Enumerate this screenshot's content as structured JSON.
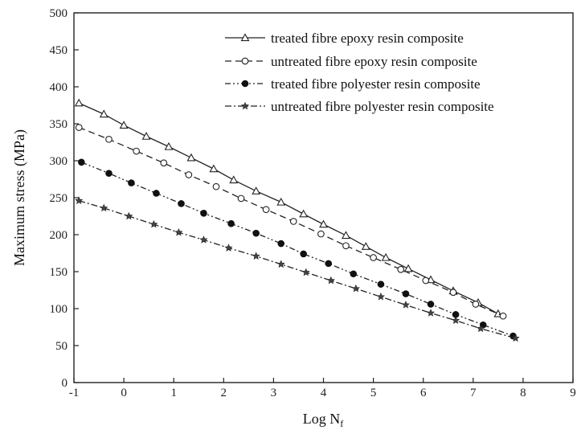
{
  "chart_data": {
    "type": "line",
    "xlabel": "Log N",
    "xlabel_sub": "f",
    "ylabel": "Maximum stress (MPa)",
    "xlim": [
      -1,
      9
    ],
    "ylim": [
      0,
      500
    ],
    "xticks": [
      -1,
      0,
      1,
      2,
      3,
      4,
      5,
      6,
      7,
      8,
      9
    ],
    "yticks": [
      0,
      50,
      100,
      150,
      200,
      250,
      300,
      350,
      400,
      450,
      500
    ],
    "grid": false,
    "legend_position": "top-right",
    "series": [
      {
        "name": "treated fibre epoxy resin composite",
        "line": "solid",
        "marker": "open-triangle",
        "x": [
          -0.9,
          -0.4,
          0.0,
          0.45,
          0.9,
          1.35,
          1.8,
          2.2,
          2.65,
          3.15,
          3.6,
          4.0,
          4.45,
          4.85,
          5.25,
          5.7,
          6.15,
          6.6,
          7.1,
          7.5
        ],
        "y": [
          378,
          363,
          348,
          333,
          319,
          304,
          289,
          274,
          259,
          244,
          228,
          214,
          199,
          184,
          169,
          154,
          139,
          124,
          108,
          93
        ]
      },
      {
        "name": "untreated fibre epoxy resin composite",
        "line": "dashed",
        "marker": "open-circle",
        "x": [
          -0.9,
          -0.3,
          0.25,
          0.8,
          1.3,
          1.85,
          2.35,
          2.85,
          3.4,
          3.95,
          4.45,
          5.0,
          5.55,
          6.05,
          6.6,
          7.05,
          7.6
        ],
        "y": [
          345,
          329,
          313,
          297,
          281,
          265,
          249,
          234,
          218,
          201,
          185,
          169,
          153,
          138,
          122,
          106,
          90
        ]
      },
      {
        "name": "treated fibre polyester resin composite",
        "line": "dash-dot-dot",
        "marker": "filled-circle",
        "x": [
          -0.85,
          -0.3,
          0.15,
          0.65,
          1.15,
          1.6,
          2.15,
          2.65,
          3.15,
          3.6,
          4.1,
          4.6,
          5.15,
          5.65,
          6.15,
          6.65,
          7.2,
          7.8
        ],
        "y": [
          298,
          283,
          270,
          256,
          242,
          229,
          215,
          202,
          188,
          174,
          161,
          147,
          133,
          120,
          106,
          92,
          78,
          63
        ]
      },
      {
        "name": "untreated fibre polyester resin composite",
        "line": "dash-dot",
        "marker": "star",
        "x": [
          -0.9,
          -0.4,
          0.1,
          0.6,
          1.1,
          1.6,
          2.1,
          2.65,
          3.15,
          3.65,
          4.15,
          4.65,
          5.15,
          5.65,
          6.15,
          6.65,
          7.15,
          7.85
        ],
        "y": [
          246,
          236,
          225,
          214,
          203,
          193,
          182,
          171,
          160,
          149,
          138,
          127,
          116,
          105,
          94,
          84,
          73,
          60
        ]
      }
    ]
  }
}
